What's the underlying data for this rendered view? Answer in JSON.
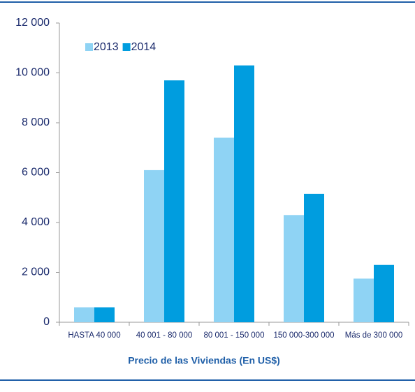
{
  "chart_data": {
    "type": "bar",
    "x_label": "Precio de las Viviendas (En US$)",
    "categories": [
      "HASTA 40 000",
      "40 001 - 80 000",
      "80 001 - 150 000",
      "150 000-300 000",
      "Más de 300 000"
    ],
    "series": [
      {
        "name": "2013",
        "color": "#8fd3f4",
        "values": [
          600,
          6100,
          7400,
          4300,
          1750
        ]
      },
      {
        "name": "2014",
        "color": "#009ddf",
        "values": [
          600,
          9700,
          10300,
          5150,
          2300
        ]
      }
    ],
    "ylim": [
      0,
      12000
    ],
    "yticks": [
      0,
      {
        "value": 2000,
        "label": "2 000"
      },
      {
        "value": 4000,
        "label": "4 000"
      },
      {
        "value": 6000,
        "label": "6 000"
      },
      {
        "value": 8000,
        "label": "8 000"
      },
      {
        "value": 10000,
        "label": "10 000"
      },
      {
        "value": 12000,
        "label": "12 000"
      }
    ],
    "grid": false
  }
}
